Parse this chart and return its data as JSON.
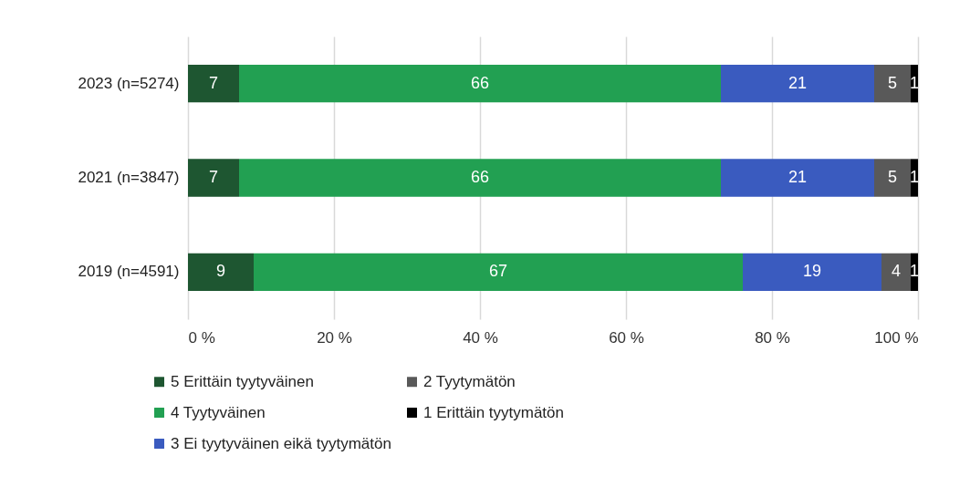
{
  "chart_data": {
    "type": "bar",
    "orientation": "horizontal",
    "stacked": true,
    "categories": [
      "2023 (n=5274)",
      "2021 (n=3847)",
      "2019 (n=4591)"
    ],
    "series": [
      {
        "name": "5 Erittäin tyytyväinen",
        "color": "#1e5631",
        "values": [
          7,
          7,
          9
        ]
      },
      {
        "name": "4 Tyytyväinen",
        "color": "#22a052",
        "values": [
          66,
          66,
          67
        ]
      },
      {
        "name": "3 Ei tyytyväinen eikä tyytymätön",
        "color": "#3a5bbf",
        "values": [
          21,
          21,
          19
        ]
      },
      {
        "name": "2 Tyytymätön",
        "color": "#595959",
        "values": [
          5,
          5,
          4
        ]
      },
      {
        "name": "1 Erittäin tyytymätön",
        "color": "#000000",
        "values": [
          1,
          1,
          1
        ]
      }
    ],
    "xlim": [
      0,
      100
    ],
    "xticks": [
      {
        "value": 0,
        "label": "0 %"
      },
      {
        "value": 20,
        "label": "20 %"
      },
      {
        "value": 40,
        "label": "40 %"
      },
      {
        "value": 60,
        "label": "60 %"
      },
      {
        "value": 80,
        "label": "80 %"
      },
      {
        "value": 100,
        "label": "100 %"
      }
    ],
    "grid": "x",
    "legend": "bottom",
    "data_labels": true
  }
}
